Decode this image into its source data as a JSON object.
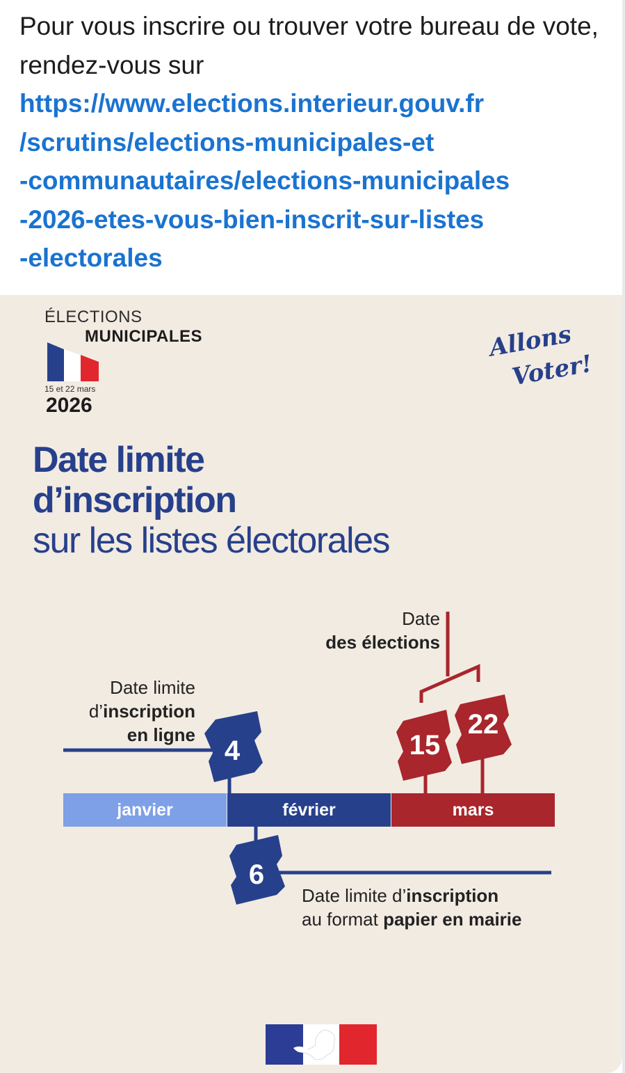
{
  "post": {
    "intro": "Pour vous inscrire ou trouver votre bureau de vote, rendez-vous sur",
    "link_lines": [
      "https://www.elections.interieur.gouv.fr",
      "/scrutins/elections-municipales-et",
      "-communautaires/elections-municipales",
      "-2026-etes-vous-bien-inscrit-sur-listes",
      "-electorales"
    ]
  },
  "logo": {
    "line1": "ÉLECTIONS",
    "line2": "MUNICIPALES",
    "dates": "15 et 22 mars",
    "year": "2026",
    "slogan_1": "Allons",
    "slogan_2": "Voter!"
  },
  "headline": {
    "line1": "Date limite",
    "line2": "d’inscription",
    "line3": "sur les listes électorales"
  },
  "timeline": {
    "months": [
      "janvier",
      "février",
      "mars"
    ],
    "online_deadline": {
      "day": "4",
      "l1": "Date limite",
      "l2_pre": "d’",
      "l2_bold": "inscription",
      "l3": "en ligne"
    },
    "paper_deadline": {
      "day": "6",
      "l1_pre": "Date limite d’",
      "l1_bold": "inscription",
      "l2_pre": "au format ",
      "l2_bold": "papier en mairie"
    },
    "elections": {
      "label1": "Date",
      "label2": "des élections",
      "day1": "15",
      "day2": "22"
    }
  },
  "colors": {
    "link": "#1a73d0",
    "navy": "#27408b",
    "light_blue": "#7ea0e6",
    "red": "#a8262c",
    "card_bg": "#f2ebe2"
  },
  "icons": [
    "french-flag-icon",
    "marianne-logo-icon"
  ]
}
